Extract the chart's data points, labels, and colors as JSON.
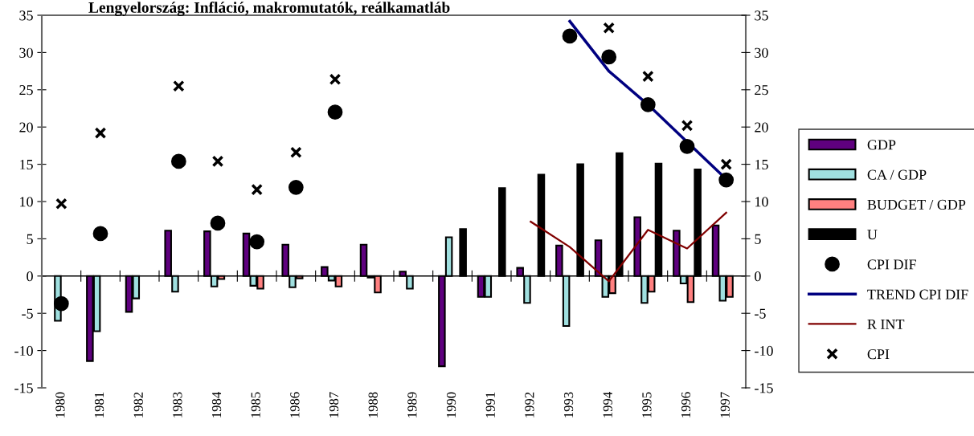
{
  "chart_data": {
    "type": "bar",
    "title": "Lengyelország: Infláció, makromutatók, reálkamatláb",
    "categories": [
      "1980",
      "1981",
      "1982",
      "1983",
      "1984",
      "1985",
      "1986",
      "1987",
      "1988",
      "1989",
      "1990",
      "1991",
      "1992",
      "1993",
      "1994",
      "1995",
      "1996",
      "1997"
    ],
    "series": [
      {
        "name": "GDP",
        "color": "#5f007f",
        "values": [
          null,
          -11.4,
          -4.8,
          6.1,
          6.0,
          5.7,
          4.2,
          1.2,
          4.2,
          0.6,
          -12.1,
          -2.8,
          1.1,
          4.1,
          4.8,
          7.9,
          6.1,
          6.8
        ]
      },
      {
        "name": "CA / GDP",
        "color": "#a0e0e0",
        "values": [
          -6.0,
          -7.4,
          -3.0,
          -2.1,
          -1.4,
          -1.3,
          -1.5,
          -0.6,
          -0.2,
          -1.7,
          5.2,
          -2.8,
          -3.6,
          -6.7,
          -2.8,
          -3.6,
          -1.0,
          -3.3
        ]
      },
      {
        "name": "BUDGET / GDP",
        "color": "#ff8080",
        "values": [
          null,
          null,
          null,
          null,
          -0.4,
          -1.7,
          -0.3,
          -1.4,
          -2.2,
          null,
          null,
          null,
          null,
          null,
          -2.3,
          -2.1,
          -3.5,
          -2.8
        ]
      },
      {
        "name": "U",
        "color": "#000000",
        "values": [
          null,
          null,
          null,
          null,
          null,
          null,
          null,
          null,
          null,
          null,
          6.3,
          11.8,
          13.6,
          15.0,
          16.5,
          15.1,
          14.3,
          null
        ]
      },
      {
        "name": "CPI DIF",
        "type": "scatter",
        "marker": "circle",
        "color": "#000000",
        "values": [
          -3.7,
          5.7,
          null,
          15.4,
          7.1,
          4.6,
          11.9,
          22.0,
          null,
          null,
          null,
          null,
          null,
          32.2,
          29.4,
          23.0,
          17.4,
          12.9
        ]
      },
      {
        "name": "TREND CPI DIF",
        "type": "line",
        "line_style": "solid",
        "color": "#000080",
        "values": [
          null,
          null,
          null,
          null,
          null,
          null,
          null,
          null,
          null,
          null,
          null,
          null,
          null,
          34.2,
          27.5,
          23.0,
          18.0,
          13.0
        ]
      },
      {
        "name": "R INT",
        "type": "line",
        "line_style": "solid",
        "color": "#800000",
        "values": [
          null,
          null,
          null,
          null,
          null,
          null,
          null,
          null,
          null,
          null,
          null,
          null,
          7.3,
          3.9,
          -0.7,
          6.2,
          3.7,
          8.5
        ]
      },
      {
        "name": "CPI",
        "type": "scatter",
        "marker": "cross",
        "color": "#000000",
        "values": [
          9.7,
          19.2,
          null,
          25.5,
          15.4,
          11.6,
          16.6,
          26.4,
          null,
          null,
          null,
          null,
          null,
          null,
          33.3,
          26.8,
          20.2,
          15.0
        ]
      }
    ],
    "ylim": [
      -15,
      35
    ],
    "yticks": [
      -15,
      -10,
      -5,
      0,
      5,
      10,
      15,
      20,
      25,
      30,
      35
    ],
    "y2lim": [
      -15,
      35
    ],
    "y2ticks": [
      -15,
      -10,
      -5,
      0,
      5,
      10,
      15,
      20,
      25,
      30,
      35
    ],
    "legend": "right"
  }
}
